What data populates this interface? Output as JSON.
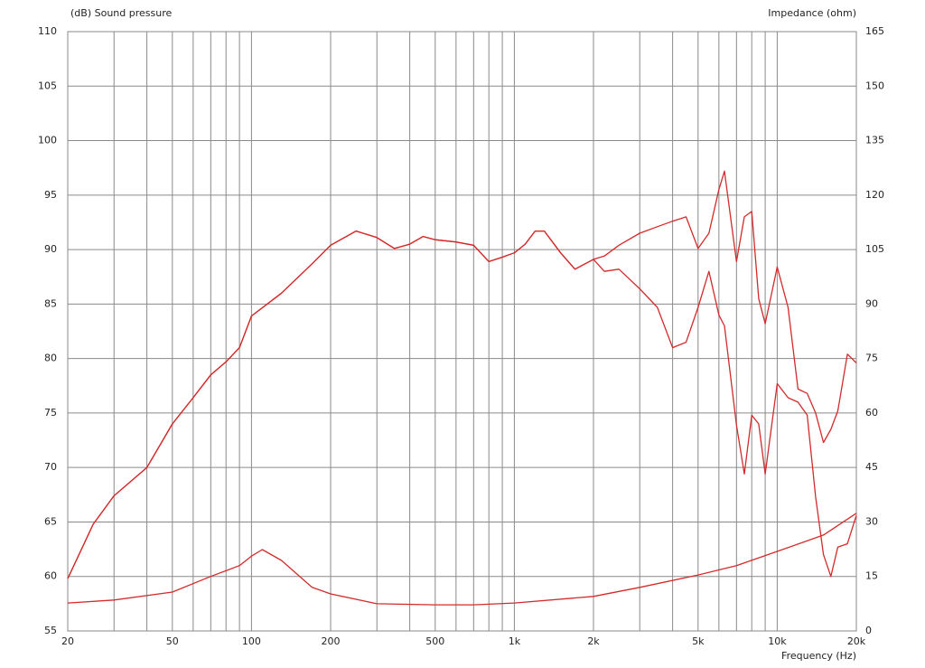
{
  "chart_data": {
    "type": "line",
    "xscale": "log",
    "ylabel": "(dB)  Sound pressure",
    "y2label": "Impedance  (ohm)",
    "xlabel": "Frequency  (Hz)",
    "xlim": [
      20,
      20000
    ],
    "xticks": [
      20,
      50,
      100,
      200,
      500,
      {
        "value": 1000,
        "label": "1k"
      },
      {
        "value": 2000,
        "label": "2k"
      },
      {
        "value": 5000,
        "label": "5k"
      },
      {
        "value": 10000,
        "label": "10k"
      },
      {
        "value": 20000,
        "label": "20k"
      }
    ],
    "x_minor_ticks": [
      30,
      40,
      60,
      70,
      80,
      90,
      300,
      400,
      600,
      700,
      800,
      900,
      3000,
      4000,
      6000,
      7000,
      8000,
      9000
    ],
    "ylim": [
      55,
      110
    ],
    "yticks": [
      55,
      60,
      65,
      70,
      75,
      80,
      85,
      90,
      95,
      100,
      105,
      110
    ],
    "y2lim": [
      0,
      165
    ],
    "y2ticks": [
      0,
      15,
      30,
      45,
      60,
      75,
      90,
      105,
      120,
      135,
      150,
      165
    ],
    "grid": true,
    "series": [
      {
        "color": "#d42a2a",
        "x": [
          20,
          25,
          30,
          40,
          50,
          60,
          70,
          80,
          90,
          100,
          130,
          170,
          200,
          250,
          300,
          350,
          400,
          450,
          500,
          600,
          700,
          800,
          900,
          1000,
          1100,
          1200,
          1300,
          1500,
          1700,
          2000,
          2200,
          2500,
          3000,
          3500,
          4000,
          4500,
          5000,
          5500,
          6000,
          6300,
          7000,
          7500,
          8000,
          8500,
          9000,
          10000,
          11000,
          12000,
          13000,
          14000,
          15000,
          16000,
          17000,
          18500,
          20000
        ],
        "values": [
          59.8,
          64.8,
          67.4,
          70,
          74,
          76.4,
          78.5,
          79.7,
          81,
          83.9,
          86,
          88.7,
          90.4,
          91.7,
          91.1,
          90.1,
          90.5,
          91.2,
          90.9,
          90.7,
          90.4,
          88.9,
          89.3,
          89.7,
          90.5,
          91.7,
          91.7,
          89.7,
          88.2,
          89.1,
          89.4,
          90.4,
          91.5,
          92.1,
          92.6,
          93,
          90.1,
          91.5,
          95.5,
          97.2,
          88.9,
          93,
          93.5,
          85.5,
          83.2,
          88.4,
          84.7,
          77.2,
          76.8,
          75,
          72.3,
          73.5,
          75.2,
          80.4,
          79.6
        ]
      },
      {
        "color": "#d42a2a",
        "x": [
          20,
          25,
          30,
          40,
          50,
          60,
          70,
          80,
          90,
          100,
          130,
          170,
          200,
          250,
          300,
          350,
          400,
          450,
          500,
          600,
          700,
          800,
          900,
          1000,
          1100,
          1200,
          1300,
          1500,
          1700,
          2000,
          2200,
          2500,
          3000,
          3500,
          4000,
          4500,
          5000,
          5500,
          6000,
          6300,
          7000,
          7500,
          8000,
          8500,
          9000,
          10000,
          11000,
          12000,
          13000,
          14000,
          15000,
          16000,
          17000,
          18500,
          20000
        ],
        "values": [
          59.8,
          64.8,
          67.4,
          70,
          74,
          76.4,
          78.5,
          79.7,
          81,
          83.9,
          86,
          88.7,
          90.4,
          91.7,
          91.1,
          90.1,
          90.5,
          91.2,
          90.9,
          90.7,
          90.4,
          88.9,
          89.3,
          89.7,
          90.5,
          91.7,
          91.7,
          89.7,
          88.2,
          89.1,
          88,
          88.2,
          86.4,
          84.7,
          81,
          81.5,
          84.7,
          88,
          84,
          83,
          73.9,
          69.4,
          74.8,
          74,
          69.4,
          77.7,
          76.4,
          76,
          74.8,
          67.3,
          62,
          60,
          62.7,
          63,
          65.6
        ]
      },
      {
        "color": "#d42a2a",
        "axis": "y2",
        "x": [
          20,
          30,
          50,
          70,
          90,
          100,
          110,
          130,
          170,
          200,
          300,
          500,
          700,
          1000,
          2000,
          3000,
          5000,
          7000,
          10000,
          15000,
          20000
        ],
        "values": [
          7.7,
          8.5,
          10.7,
          15,
          18,
          20.6,
          22.4,
          19.4,
          12,
          10.2,
          7.5,
          7.2,
          7.2,
          7.7,
          9.5,
          12,
          15.4,
          18,
          21.9,
          26.4,
          32.4
        ]
      }
    ]
  }
}
